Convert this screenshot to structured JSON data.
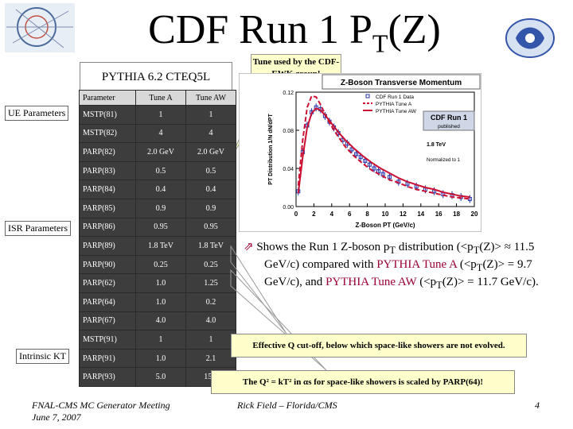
{
  "title_main": "CDF Run 1 P",
  "title_sub": "T",
  "title_end": "(Z)",
  "pythia_label": "PYTHIA 6.2 CTEQ5L",
  "tune_callout": "Tune used by the CDF-EWK group!",
  "ue_label": "UE Parameters",
  "isr_label": "ISR Parameters",
  "intrinsic_label": "Intrinsic KT",
  "table": {
    "headers": [
      "Parameter",
      "Tune A",
      "Tune AW"
    ],
    "rows": [
      [
        "MSTP(81)",
        "1",
        "1"
      ],
      [
        "MSTP(82)",
        "4",
        "4"
      ],
      [
        "PARP(82)",
        "2.0 GeV",
        "2.0 GeV"
      ],
      [
        "PARP(83)",
        "0.5",
        "0.5"
      ],
      [
        "PARP(84)",
        "0.4",
        "0.4"
      ],
      [
        "PARP(85)",
        "0.9",
        "0.9"
      ],
      [
        "PARP(86)",
        "0.95",
        "0.95"
      ],
      [
        "PARP(89)",
        "1.8 TeV",
        "1.8 TeV"
      ],
      [
        "PARP(90)",
        "0.25",
        "0.25"
      ],
      [
        "PARP(62)",
        "1.0",
        "1.25"
      ],
      [
        "PARP(64)",
        "1.0",
        "0.2"
      ],
      [
        "PARP(67)",
        "4.0",
        "4.0"
      ],
      [
        "MSTP(91)",
        "1",
        "1"
      ],
      [
        "PARP(91)",
        "1.0",
        "2.1"
      ],
      [
        "PARP(93)",
        "5.0",
        "15.0"
      ]
    ]
  },
  "shows_text": {
    "p1": "Shows the Run 1 Z-boson p",
    "p2": " distribution (<p",
    "p3": "(Z)> ≈ 11.5 GeV/c) compared with ",
    "tuneA": "PYTHIA Tune A",
    "p4": " (<p",
    "p5": "(Z)> = 9.7 GeV/c), and ",
    "tuneAW": "PYTHIA Tune AW",
    "p6": " (<p",
    "p7": "(Z)> = 11.7 GeV/c).",
    "sub": "T"
  },
  "effq_text": "Effective Q cut-off, below which space-like showers are not evolved.",
  "q2_text": "The Q² = kT² in αs for space-like showers is scaled by PARP(64)!",
  "footer_left_1": "FNAL-CMS MC Generator Meeting",
  "footer_left_2": "June 7, 2007",
  "footer_center": "Rick Field – Florida/CMS",
  "footer_page": "4",
  "chart_data": {
    "type": "line",
    "title": "Z-Boson Transverse Momentum",
    "xlabel": "Z-Boson PT (GeV/c)",
    "ylabel": "PT Distribution 1/N dN/dPT",
    "xlim": [
      0,
      20
    ],
    "ylim": [
      0,
      0.12
    ],
    "xticks": [
      "0",
      "2",
      "4",
      "6",
      "8",
      "10",
      "12",
      "14",
      "16",
      "18",
      "20"
    ],
    "yticks": [
      "0.00",
      "0.04",
      "0.08",
      "0.12"
    ],
    "legend": [
      "CDF Run 1 Data",
      "PYTHIA Tune A",
      "PYTHIA Tune AW"
    ],
    "annotations": [
      "CDF Run 1",
      "published",
      "1.8 TeV",
      "Normalized to 1"
    ],
    "series": [
      {
        "name": "CDF Run 1 Data",
        "x": [
          0.25,
          0.75,
          1.25,
          1.75,
          2.25,
          2.75,
          3.25,
          3.75,
          4.25,
          4.75,
          5.25,
          5.75,
          6.25,
          6.75,
          7.25,
          7.75,
          8.25,
          8.75,
          9.25,
          9.75,
          10.5,
          11.5,
          12.5,
          13.5,
          14.5,
          15.5,
          16.5,
          17.5,
          18.5,
          19.5
        ],
        "y": [
          0.016,
          0.057,
          0.085,
          0.099,
          0.104,
          0.102,
          0.095,
          0.089,
          0.083,
          0.077,
          0.07,
          0.066,
          0.06,
          0.055,
          0.052,
          0.048,
          0.044,
          0.04,
          0.037,
          0.034,
          0.031,
          0.026,
          0.024,
          0.021,
          0.018,
          0.016,
          0.013,
          0.012,
          0.01,
          0.008
        ]
      },
      {
        "name": "PYTHIA Tune A",
        "x": [
          0.25,
          0.75,
          1.25,
          1.75,
          2.25,
          2.75,
          3.25,
          3.75,
          4.25,
          4.75,
          5.5,
          6.5,
          7.5,
          8.5,
          9.5,
          10.5,
          11.5,
          12.5,
          13.5,
          14.5,
          15.5,
          16.5,
          17.5,
          18.5,
          19.5
        ],
        "y": [
          0.022,
          0.07,
          0.104,
          0.116,
          0.115,
          0.107,
          0.097,
          0.088,
          0.08,
          0.073,
          0.063,
          0.053,
          0.045,
          0.038,
          0.033,
          0.028,
          0.025,
          0.021,
          0.018,
          0.016,
          0.014,
          0.012,
          0.01,
          0.009,
          0.008
        ]
      },
      {
        "name": "PYTHIA Tune AW",
        "x": [
          0.25,
          0.75,
          1.25,
          1.75,
          2.25,
          2.75,
          3.25,
          3.75,
          4.25,
          4.75,
          5.5,
          6.5,
          7.5,
          8.5,
          9.5,
          10.5,
          11.5,
          12.5,
          13.5,
          14.5,
          15.5,
          16.5,
          17.5,
          18.5,
          19.5
        ],
        "y": [
          0.014,
          0.052,
          0.083,
          0.098,
          0.103,
          0.101,
          0.096,
          0.09,
          0.084,
          0.078,
          0.07,
          0.061,
          0.053,
          0.046,
          0.04,
          0.035,
          0.03,
          0.026,
          0.023,
          0.02,
          0.018,
          0.015,
          0.013,
          0.011,
          0.01
        ]
      }
    ],
    "grid": false,
    "legend_position": "top-right"
  }
}
